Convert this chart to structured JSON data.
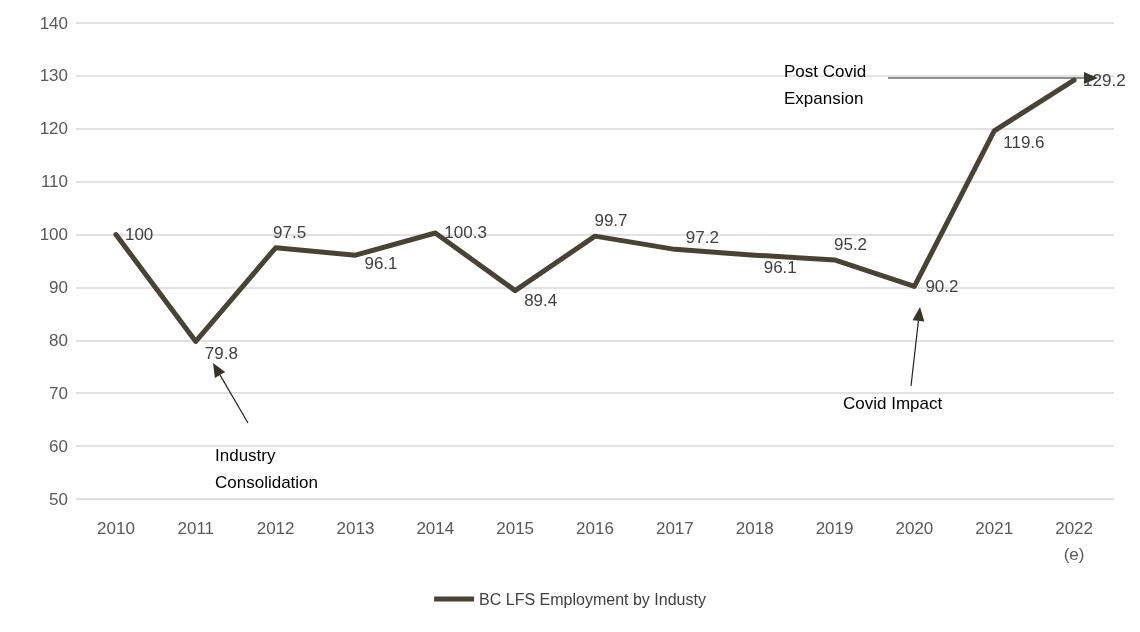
{
  "chart_data": {
    "type": "line",
    "categories": [
      "2010",
      "2011",
      "2012",
      "2013",
      "2014",
      "2015",
      "2016",
      "2017",
      "2018",
      "2019",
      "2020",
      "2021",
      "2022\n(e)"
    ],
    "series": [
      {
        "name": "BC LFS Employment by Industy",
        "color": "#4a4232",
        "values": [
          100,
          79.8,
          97.5,
          96.1,
          100.3,
          89.4,
          99.7,
          97.2,
          96.1,
          95.2,
          90.2,
          119.6,
          129.2
        ]
      }
    ],
    "ylim": [
      50,
      140
    ],
    "yticks": [
      50,
      60,
      70,
      80,
      90,
      100,
      110,
      120,
      130,
      140
    ],
    "grid": "y",
    "legend": "bottom",
    "marker": "none",
    "line_style": "solid",
    "data_labels": true,
    "annotations": [
      "Industry\nConsolidation",
      "Covid Impact",
      "Post Covid\nExpansion"
    ]
  }
}
